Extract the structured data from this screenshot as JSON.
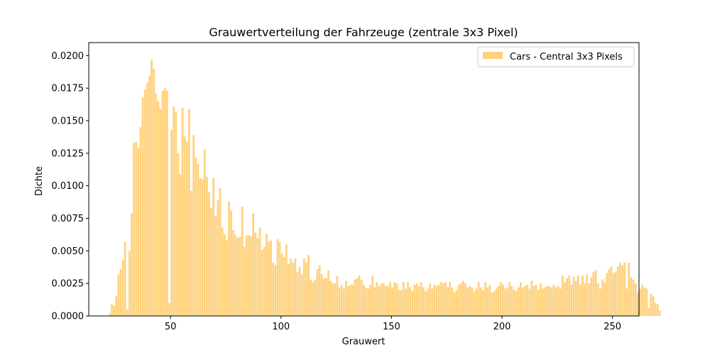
{
  "chart_data": {
    "type": "bar",
    "title": "Grauwertverteilung der Fahrzeuge (zentrale 3x3 Pixel)",
    "xlabel": "Grauwert",
    "ylabel": "Dichte",
    "xlim": [
      13,
      262
    ],
    "ylim": [
      0,
      0.021
    ],
    "x_ticks": [
      "50",
      "100",
      "150",
      "200",
      "250"
    ],
    "y_ticks": [
      "0.0000",
      "0.0025",
      "0.0050",
      "0.0075",
      "0.0100",
      "0.0125",
      "0.0150",
      "0.0175",
      "0.0200"
    ],
    "grid": false,
    "legend_position": "top-right",
    "series": [
      {
        "name": "Cars - Central 3x3 Pixels",
        "color": "#ffd27f",
        "bin_start": 22,
        "bin_width": 1,
        "values": [
          0.0002,
          0.0009,
          0.0008,
          0.0015,
          0.0032,
          0.0036,
          0.0043,
          0.0057,
          0.0005,
          0.005,
          0.0079,
          0.0133,
          0.0134,
          0.0129,
          0.0145,
          0.0168,
          0.0174,
          0.0179,
          0.0184,
          0.0197,
          0.019,
          0.0171,
          0.0165,
          0.0159,
          0.0173,
          0.0175,
          0.0173,
          0.001,
          0.0143,
          0.0161,
          0.0157,
          0.0125,
          0.0109,
          0.016,
          0.0138,
          0.0134,
          0.0159,
          0.0096,
          0.0139,
          0.0122,
          0.0117,
          0.0106,
          0.0105,
          0.0128,
          0.0107,
          0.0095,
          0.0083,
          0.0106,
          0.0077,
          0.0089,
          0.0098,
          0.0068,
          0.0063,
          0.0058,
          0.0088,
          0.0081,
          0.0066,
          0.0062,
          0.006,
          0.0061,
          0.0084,
          0.0053,
          0.0062,
          0.0062,
          0.0061,
          0.0079,
          0.0064,
          0.006,
          0.0068,
          0.0051,
          0.0053,
          0.0063,
          0.0057,
          0.0058,
          0.0041,
          0.0039,
          0.0059,
          0.0057,
          0.0048,
          0.0045,
          0.0055,
          0.004,
          0.0044,
          0.0041,
          0.0044,
          0.0034,
          0.0038,
          0.0032,
          0.0044,
          0.0041,
          0.0047,
          0.0028,
          0.0026,
          0.0028,
          0.0036,
          0.0039,
          0.0032,
          0.0029,
          0.0029,
          0.0035,
          0.0027,
          0.0025,
          0.0025,
          0.0031,
          0.0022,
          0.0024,
          0.0021,
          0.0027,
          0.0023,
          0.0024,
          0.0024,
          0.0028,
          0.0029,
          0.0031,
          0.0028,
          0.0024,
          0.0022,
          0.0021,
          0.0024,
          0.0031,
          0.0022,
          0.0026,
          0.0023,
          0.0025,
          0.0025,
          0.0023,
          0.0023,
          0.0026,
          0.0022,
          0.0026,
          0.0025,
          0.002,
          0.002,
          0.0026,
          0.0021,
          0.0026,
          0.0022,
          0.0019,
          0.0024,
          0.0025,
          0.0023,
          0.0026,
          0.0022,
          0.0019,
          0.0021,
          0.0025,
          0.0021,
          0.0024,
          0.0023,
          0.0024,
          0.0026,
          0.0025,
          0.0026,
          0.0022,
          0.0026,
          0.0022,
          0.0018,
          0.002,
          0.0024,
          0.0025,
          0.0027,
          0.0025,
          0.0022,
          0.0023,
          0.0022,
          0.0019,
          0.0021,
          0.0026,
          0.0022,
          0.002,
          0.0026,
          0.0022,
          0.0024,
          0.0018,
          0.0019,
          0.0021,
          0.0023,
          0.0026,
          0.0024,
          0.0021,
          0.0022,
          0.0026,
          0.0023,
          0.002,
          0.0019,
          0.0022,
          0.0026,
          0.0022,
          0.0023,
          0.0024,
          0.0021,
          0.0027,
          0.0023,
          0.0024,
          0.002,
          0.0025,
          0.0021,
          0.0022,
          0.0023,
          0.0023,
          0.0022,
          0.0024,
          0.0022,
          0.0023,
          0.0021,
          0.0031,
          0.0026,
          0.0029,
          0.0031,
          0.0024,
          0.003,
          0.0027,
          0.0031,
          0.0024,
          0.0031,
          0.0025,
          0.0032,
          0.0025,
          0.003,
          0.0034,
          0.0035,
          0.0025,
          0.0021,
          0.0028,
          0.0026,
          0.0033,
          0.0036,
          0.0038,
          0.0033,
          0.0034,
          0.0038,
          0.0041,
          0.0039,
          0.0041,
          0.0021,
          0.0041,
          0.003,
          0.0028,
          0.0025,
          0.0018,
          0.0021,
          0.0024,
          0.0022,
          0.0021,
          0.0006,
          0.0017,
          0.0015,
          0.001,
          0.0009,
          0.0004
        ]
      }
    ]
  }
}
